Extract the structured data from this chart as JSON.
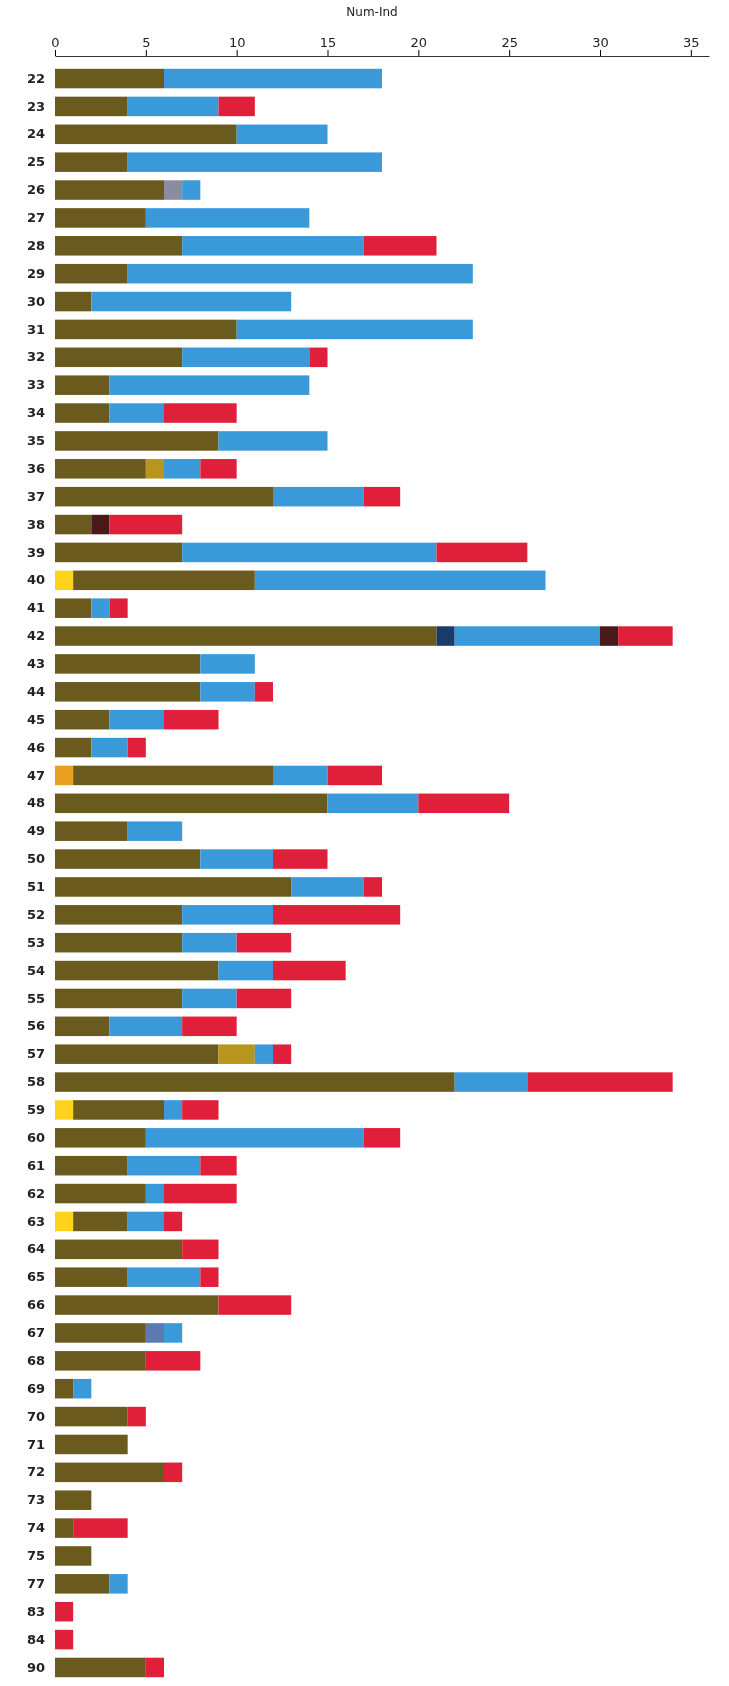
{
  "chart_data": {
    "type": "bar",
    "orientation": "horizontal",
    "stacked": true,
    "xlabel": "Num-Ind",
    "xlim": [
      0,
      36
    ],
    "xticks": [
      0,
      5,
      10,
      15,
      20,
      25,
      30,
      35
    ],
    "grid": false,
    "categories": [
      "22",
      "23",
      "24",
      "25",
      "26",
      "27",
      "28",
      "29",
      "30",
      "31",
      "32",
      "33",
      "34",
      "35",
      "36",
      "37",
      "38",
      "39",
      "40",
      "41",
      "42",
      "43",
      "44",
      "45",
      "46",
      "47",
      "48",
      "49",
      "50",
      "51",
      "52",
      "53",
      "54",
      "55",
      "56",
      "57",
      "58",
      "59",
      "60",
      "61",
      "62",
      "63",
      "64",
      "65",
      "66",
      "67",
      "68",
      "69",
      "70",
      "71",
      "72",
      "73",
      "74",
      "75",
      "77",
      "83",
      "84",
      "90"
    ],
    "series": [
      {
        "color": "#ffd21e",
        "values": [
          null,
          null,
          null,
          null,
          null,
          null,
          null,
          null,
          null,
          null,
          null,
          null,
          null,
          null,
          null,
          null,
          null,
          null,
          1,
          null,
          null,
          null,
          null,
          null,
          null,
          null,
          null,
          null,
          null,
          null,
          null,
          null,
          null,
          null,
          null,
          null,
          null,
          1,
          null,
          null,
          null,
          1,
          null,
          null,
          null,
          null,
          null,
          null,
          null,
          null,
          null,
          null,
          null,
          null,
          null,
          null,
          null,
          null
        ]
      },
      {
        "color": "#e8a020",
        "values": [
          null,
          null,
          null,
          null,
          null,
          null,
          null,
          null,
          null,
          null,
          null,
          null,
          null,
          null,
          null,
          null,
          null,
          null,
          null,
          null,
          null,
          null,
          null,
          null,
          null,
          1,
          null,
          null,
          null,
          null,
          null,
          null,
          null,
          null,
          null,
          null,
          null,
          null,
          null,
          null,
          null,
          null,
          null,
          null,
          null,
          null,
          null,
          null,
          null,
          null,
          null,
          null,
          null,
          null,
          null,
          null,
          null,
          null
        ]
      },
      {
        "color": "#6b5a1e",
        "values": [
          6,
          4,
          10,
          4,
          6,
          5,
          7,
          4,
          2,
          10,
          7,
          3,
          3,
          9,
          5,
          12,
          2,
          7,
          10,
          2,
          21,
          8,
          8,
          3,
          2,
          11,
          15,
          4,
          8,
          13,
          7,
          7,
          9,
          7,
          3,
          9,
          22,
          5,
          5,
          4,
          5,
          3,
          7,
          4,
          9,
          5,
          5,
          1,
          4,
          4,
          6,
          2,
          1,
          2,
          3,
          null,
          null,
          5
        ]
      },
      {
        "color": "#b8961e",
        "values": [
          null,
          null,
          null,
          null,
          null,
          null,
          null,
          null,
          null,
          null,
          null,
          null,
          null,
          null,
          1,
          null,
          null,
          null,
          null,
          null,
          null,
          null,
          null,
          null,
          null,
          null,
          null,
          null,
          null,
          null,
          null,
          null,
          null,
          null,
          null,
          2,
          null,
          null,
          null,
          null,
          null,
          null,
          null,
          null,
          null,
          null,
          null,
          null,
          null,
          null,
          null,
          null,
          null,
          null,
          null,
          null,
          null,
          null
        ]
      },
      {
        "color": "#8c8ca0",
        "values": [
          null,
          null,
          null,
          null,
          1,
          null,
          null,
          null,
          null,
          null,
          null,
          null,
          null,
          null,
          null,
          null,
          null,
          null,
          null,
          null,
          null,
          null,
          null,
          null,
          null,
          null,
          null,
          null,
          null,
          null,
          null,
          null,
          null,
          null,
          null,
          null,
          null,
          null,
          null,
          null,
          null,
          null,
          null,
          null,
          null,
          null,
          null,
          null,
          null,
          null,
          null,
          null,
          null,
          null,
          null,
          null,
          null,
          null
        ]
      },
      {
        "color": "#1a3a6a",
        "values": [
          null,
          null,
          null,
          null,
          null,
          null,
          null,
          null,
          null,
          null,
          null,
          null,
          null,
          null,
          null,
          null,
          null,
          null,
          null,
          null,
          1,
          null,
          null,
          null,
          null,
          null,
          null,
          null,
          null,
          null,
          null,
          null,
          null,
          null,
          null,
          null,
          null,
          null,
          null,
          null,
          null,
          null,
          null,
          null,
          null,
          null,
          null,
          null,
          null,
          null,
          null,
          null,
          null,
          null,
          null,
          null,
          null,
          null
        ]
      },
      {
        "color": "#5a7ab0",
        "values": [
          null,
          null,
          null,
          null,
          null,
          null,
          null,
          null,
          null,
          null,
          null,
          null,
          null,
          null,
          null,
          null,
          null,
          null,
          null,
          null,
          null,
          null,
          null,
          null,
          null,
          null,
          null,
          null,
          null,
          null,
          null,
          null,
          null,
          null,
          null,
          null,
          null,
          null,
          null,
          null,
          null,
          null,
          null,
          null,
          null,
          1,
          null,
          null,
          null,
          null,
          null,
          null,
          null,
          null,
          null,
          null,
          null,
          null
        ]
      },
      {
        "color": "#3a9ad9",
        "values": [
          12,
          5,
          5,
          14,
          1,
          9,
          10,
          19,
          11,
          13,
          7,
          11,
          3,
          6,
          2,
          5,
          null,
          14,
          16,
          1,
          8,
          3,
          3,
          3,
          2,
          3,
          5,
          3,
          4,
          4,
          5,
          3,
          3,
          3,
          4,
          1,
          4,
          1,
          12,
          4,
          1,
          2,
          null,
          4,
          null,
          1,
          null,
          1,
          null,
          null,
          null,
          null,
          null,
          null,
          1,
          null,
          null,
          null
        ]
      },
      {
        "color": "#4a1a1a",
        "values": [
          null,
          null,
          null,
          null,
          null,
          null,
          null,
          null,
          null,
          null,
          null,
          null,
          null,
          null,
          null,
          null,
          1,
          null,
          null,
          null,
          1,
          null,
          null,
          null,
          null,
          null,
          null,
          null,
          null,
          null,
          null,
          null,
          null,
          null,
          null,
          null,
          null,
          null,
          null,
          null,
          null,
          null,
          null,
          null,
          null,
          null,
          null,
          null,
          null,
          null,
          null,
          null,
          null,
          null,
          null,
          null,
          null,
          null
        ]
      },
      {
        "color": "#e0203a",
        "values": [
          null,
          2,
          null,
          null,
          null,
          null,
          4,
          null,
          null,
          null,
          1,
          null,
          4,
          null,
          2,
          2,
          4,
          5,
          null,
          1,
          3,
          null,
          1,
          3,
          1,
          3,
          5,
          null,
          3,
          1,
          7,
          3,
          4,
          3,
          3,
          1,
          8,
          2,
          2,
          2,
          4,
          1,
          2,
          1,
          4,
          null,
          3,
          null,
          1,
          null,
          1,
          null,
          3,
          null,
          null,
          1,
          1,
          1
        ]
      }
    ]
  }
}
